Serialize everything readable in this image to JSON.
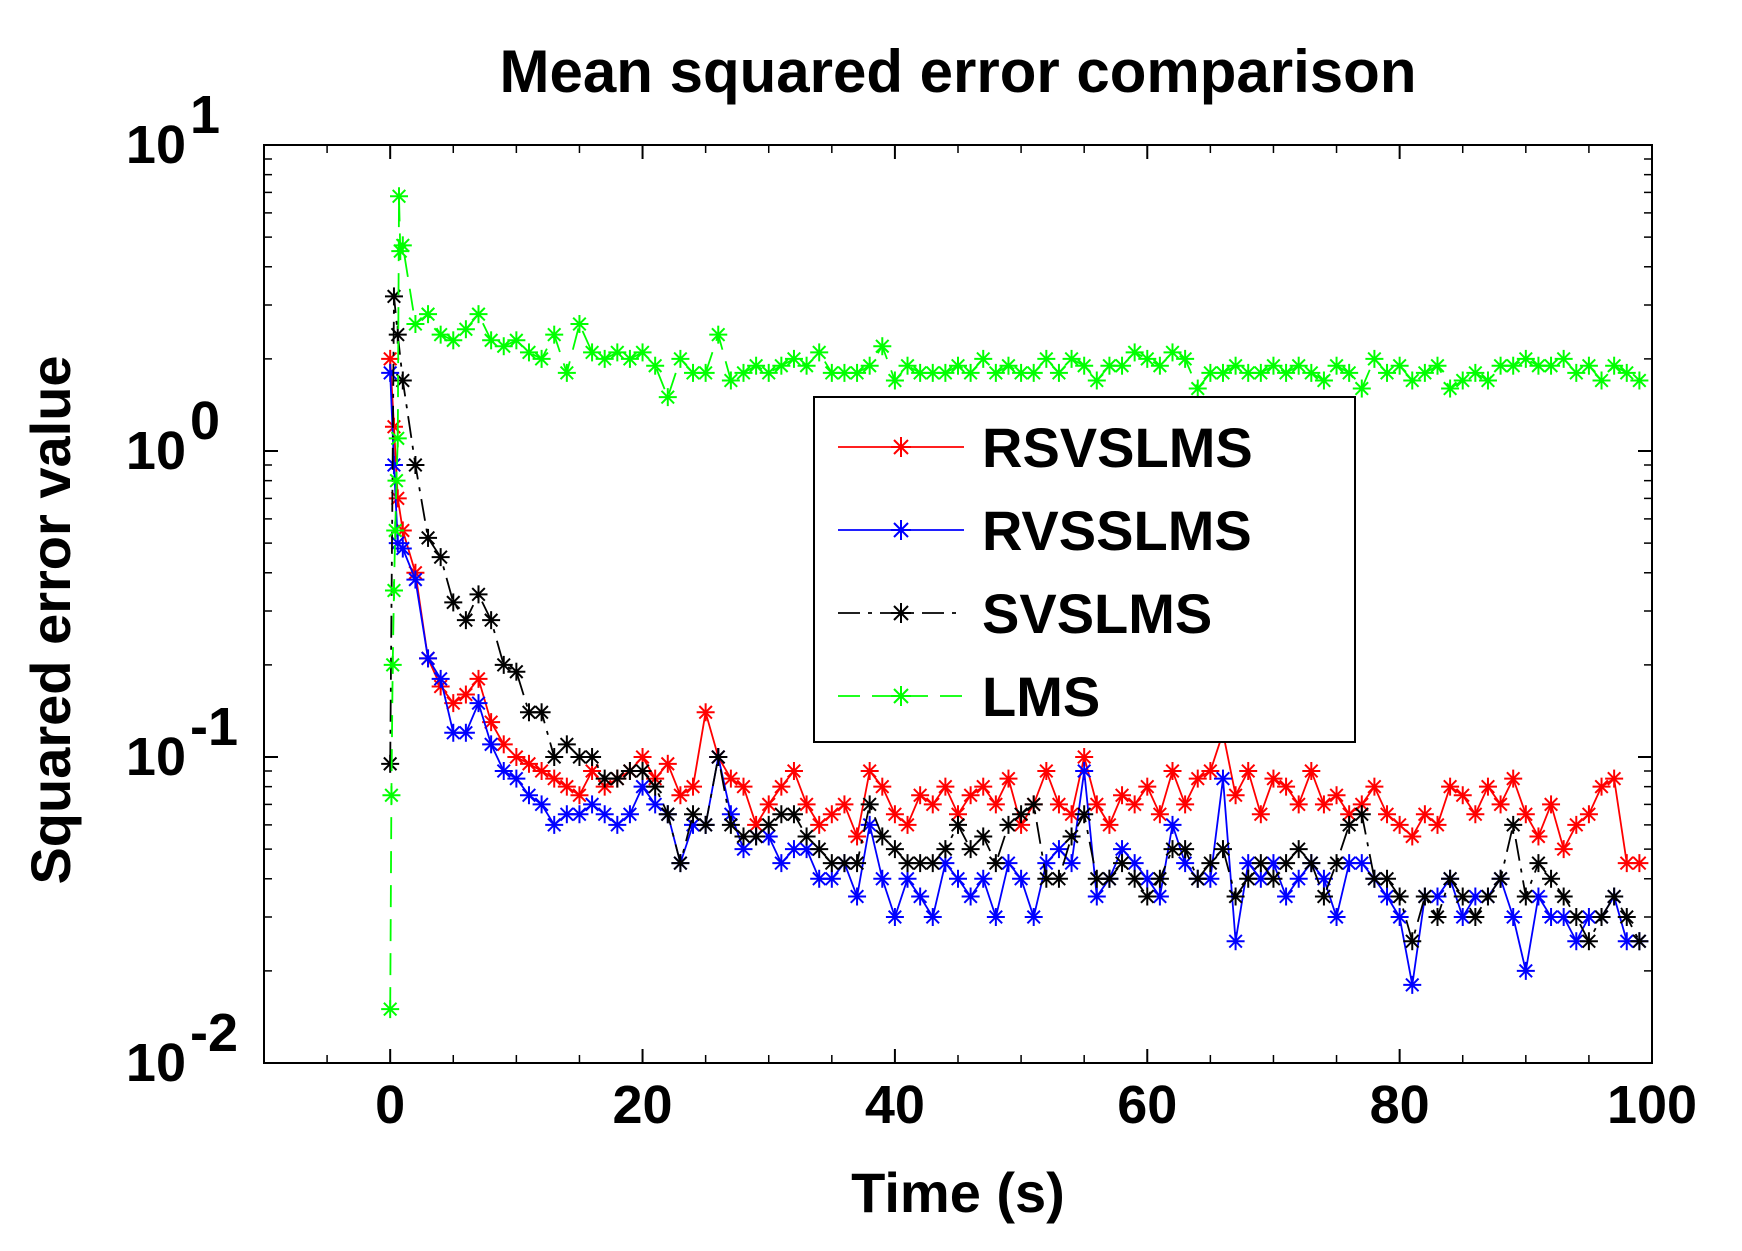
{
  "chart_data": {
    "type": "line",
    "title": "Mean squared error comparison",
    "xlabel": "Time (s)",
    "ylabel": "Squared error value",
    "xlim": [
      -10,
      100
    ],
    "ylim": [
      0.01,
      10
    ],
    "yscale": "log",
    "xticks": [
      0,
      20,
      40,
      60,
      80,
      100
    ],
    "xtick_labels": [
      "0",
      "20",
      "40",
      "60",
      "80",
      "100"
    ],
    "yticks": [
      {
        "value": 10,
        "base": "10",
        "exp": "1"
      },
      {
        "value": 1,
        "base": "10",
        "exp": "0"
      },
      {
        "value": 0.1,
        "base": "10",
        "exp": "-1"
      },
      {
        "value": 0.01,
        "base": "10",
        "exp": "-2"
      }
    ],
    "grid": false,
    "legend_position": "center-right",
    "series": [
      {
        "name": "RSVSLMS",
        "color": "#ff0000",
        "dash": "solid",
        "x": [
          0,
          0.3,
          0.6,
          1,
          2,
          3,
          4,
          5,
          6,
          7,
          8,
          9,
          10,
          11,
          12,
          13,
          14,
          15,
          16,
          17,
          18,
          19,
          20,
          21,
          22,
          23,
          24,
          25,
          26,
          27,
          28,
          29,
          30,
          31,
          32,
          33,
          34,
          35,
          36,
          37,
          38,
          39,
          40,
          41,
          42,
          43,
          44,
          45,
          46,
          47,
          48,
          49,
          50,
          51,
          52,
          53,
          54,
          55,
          56,
          57,
          58,
          59,
          60,
          61,
          62,
          63,
          64,
          65,
          66,
          67,
          68,
          69,
          70,
          71,
          72,
          73,
          74,
          75,
          76,
          77,
          78,
          79,
          80,
          81,
          82,
          83,
          84,
          85,
          86,
          87,
          88,
          89,
          90,
          91,
          92,
          93,
          94,
          95,
          96,
          97,
          98,
          99
        ],
        "y": [
          2.0,
          1.2,
          0.7,
          0.55,
          0.4,
          0.21,
          0.17,
          0.15,
          0.16,
          0.18,
          0.13,
          0.11,
          0.1,
          0.095,
          0.09,
          0.085,
          0.08,
          0.075,
          0.09,
          0.08,
          0.085,
          0.09,
          0.1,
          0.085,
          0.095,
          0.075,
          0.08,
          0.14,
          0.1,
          0.085,
          0.08,
          0.06,
          0.07,
          0.08,
          0.09,
          0.07,
          0.06,
          0.065,
          0.07,
          0.055,
          0.09,
          0.08,
          0.065,
          0.06,
          0.075,
          0.07,
          0.08,
          0.065,
          0.075,
          0.08,
          0.07,
          0.085,
          0.06,
          0.07,
          0.09,
          0.07,
          0.065,
          0.1,
          0.07,
          0.06,
          0.075,
          0.07,
          0.08,
          0.065,
          0.09,
          0.07,
          0.085,
          0.09,
          0.12,
          0.075,
          0.09,
          0.065,
          0.085,
          0.08,
          0.07,
          0.09,
          0.07,
          0.075,
          0.065,
          0.07,
          0.08,
          0.065,
          0.06,
          0.055,
          0.065,
          0.06,
          0.08,
          0.075,
          0.065,
          0.08,
          0.07,
          0.085,
          0.065,
          0.055,
          0.07,
          0.05,
          0.06,
          0.065,
          0.08,
          0.085,
          0.045,
          0.045
        ]
      },
      {
        "name": "RVSSLMS",
        "color": "#0000ff",
        "dash": "solid",
        "x": [
          0,
          0.3,
          0.6,
          1,
          2,
          3,
          4,
          5,
          6,
          7,
          8,
          9,
          10,
          11,
          12,
          13,
          14,
          15,
          16,
          17,
          18,
          19,
          20,
          21,
          22,
          23,
          24,
          25,
          26,
          27,
          28,
          29,
          30,
          31,
          32,
          33,
          34,
          35,
          36,
          37,
          38,
          39,
          40,
          41,
          42,
          43,
          44,
          45,
          46,
          47,
          48,
          49,
          50,
          51,
          52,
          53,
          54,
          55,
          56,
          57,
          58,
          59,
          60,
          61,
          62,
          63,
          64,
          65,
          66,
          67,
          68,
          69,
          70,
          71,
          72,
          73,
          74,
          75,
          76,
          77,
          78,
          79,
          80,
          81,
          82,
          83,
          84,
          85,
          86,
          87,
          88,
          89,
          90,
          91,
          92,
          93,
          94,
          95,
          96,
          97,
          98,
          99
        ],
        "y": [
          1.8,
          0.9,
          0.5,
          0.48,
          0.38,
          0.21,
          0.18,
          0.12,
          0.12,
          0.15,
          0.11,
          0.09,
          0.085,
          0.075,
          0.07,
          0.06,
          0.065,
          0.065,
          0.07,
          0.065,
          0.06,
          0.065,
          0.08,
          0.07,
          0.065,
          0.045,
          0.06,
          0.06,
          0.1,
          0.065,
          0.05,
          0.055,
          0.055,
          0.045,
          0.05,
          0.05,
          0.04,
          0.04,
          0.045,
          0.035,
          0.06,
          0.04,
          0.03,
          0.04,
          0.035,
          0.03,
          0.045,
          0.04,
          0.035,
          0.04,
          0.03,
          0.045,
          0.04,
          0.03,
          0.045,
          0.05,
          0.045,
          0.09,
          0.035,
          0.04,
          0.05,
          0.045,
          0.04,
          0.035,
          0.06,
          0.045,
          0.04,
          0.04,
          0.085,
          0.025,
          0.045,
          0.04,
          0.045,
          0.035,
          0.04,
          0.045,
          0.04,
          0.03,
          0.045,
          0.045,
          0.04,
          0.035,
          0.03,
          0.018,
          0.035,
          0.035,
          0.04,
          0.03,
          0.035,
          0.035,
          0.04,
          0.03,
          0.02,
          0.035,
          0.03,
          0.03,
          0.025,
          0.03,
          0.03,
          0.035,
          0.025,
          0.025
        ]
      },
      {
        "name": "SVSLMS",
        "color": "#000000",
        "dash": "dashdot",
        "x": [
          0,
          0.3,
          0.6,
          1,
          2,
          3,
          4,
          5,
          6,
          7,
          8,
          9,
          10,
          11,
          12,
          13,
          14,
          15,
          16,
          17,
          18,
          19,
          20,
          21,
          22,
          23,
          24,
          25,
          26,
          27,
          28,
          29,
          30,
          31,
          32,
          33,
          34,
          35,
          36,
          37,
          38,
          39,
          40,
          41,
          42,
          43,
          44,
          45,
          46,
          47,
          48,
          49,
          50,
          51,
          52,
          53,
          54,
          55,
          56,
          57,
          58,
          59,
          60,
          61,
          62,
          63,
          64,
          65,
          66,
          67,
          68,
          69,
          70,
          71,
          72,
          73,
          74,
          75,
          76,
          77,
          78,
          79,
          80,
          81,
          82,
          83,
          84,
          85,
          86,
          87,
          88,
          89,
          90,
          91,
          92,
          93,
          94,
          95,
          96,
          97,
          98,
          99
        ],
        "y": [
          0.095,
          3.2,
          2.4,
          1.7,
          0.9,
          0.52,
          0.45,
          0.32,
          0.28,
          0.34,
          0.28,
          0.2,
          0.19,
          0.14,
          0.14,
          0.1,
          0.11,
          0.1,
          0.1,
          0.085,
          0.085,
          0.09,
          0.09,
          0.08,
          0.065,
          0.045,
          0.065,
          0.06,
          0.1,
          0.06,
          0.055,
          0.055,
          0.06,
          0.065,
          0.065,
          0.055,
          0.05,
          0.045,
          0.045,
          0.045,
          0.07,
          0.055,
          0.05,
          0.045,
          0.045,
          0.045,
          0.05,
          0.06,
          0.05,
          0.055,
          0.045,
          0.06,
          0.065,
          0.07,
          0.04,
          0.04,
          0.055,
          0.065,
          0.04,
          0.04,
          0.045,
          0.04,
          0.035,
          0.04,
          0.05,
          0.05,
          0.04,
          0.045,
          0.05,
          0.035,
          0.04,
          0.045,
          0.04,
          0.045,
          0.05,
          0.045,
          0.035,
          0.045,
          0.06,
          0.065,
          0.04,
          0.04,
          0.035,
          0.025,
          0.035,
          0.03,
          0.04,
          0.035,
          0.03,
          0.035,
          0.04,
          0.06,
          0.035,
          0.045,
          0.04,
          0.035,
          0.03,
          0.025,
          0.03,
          0.035,
          0.03,
          0.025
        ]
      },
      {
        "name": "LMS",
        "color": "#00ff00",
        "dash": "dashed",
        "x": [
          0,
          0.1,
          0.2,
          0.3,
          0.4,
          0.5,
          0.6,
          0.7,
          0.8,
          1,
          2,
          3,
          4,
          5,
          6,
          7,
          8,
          9,
          10,
          11,
          12,
          13,
          14,
          15,
          16,
          17,
          18,
          19,
          20,
          21,
          22,
          23,
          24,
          25,
          26,
          27,
          28,
          29,
          30,
          31,
          32,
          33,
          34,
          35,
          36,
          37,
          38,
          39,
          40,
          41,
          42,
          43,
          44,
          45,
          46,
          47,
          48,
          49,
          50,
          51,
          52,
          53,
          54,
          55,
          56,
          57,
          58,
          59,
          60,
          61,
          62,
          63,
          64,
          65,
          66,
          67,
          68,
          69,
          70,
          71,
          72,
          73,
          74,
          75,
          76,
          77,
          78,
          79,
          80,
          81,
          82,
          83,
          84,
          85,
          86,
          87,
          88,
          89,
          90,
          91,
          92,
          93,
          94,
          95,
          96,
          97,
          98,
          99
        ],
        "y": [
          0.015,
          0.075,
          0.2,
          0.35,
          0.55,
          0.8,
          1.1,
          6.8,
          4.5,
          4.7,
          2.6,
          2.8,
          2.4,
          2.3,
          2.5,
          2.8,
          2.3,
          2.2,
          2.3,
          2.1,
          2.0,
          2.4,
          1.8,
          2.6,
          2.1,
          2.0,
          2.1,
          2.0,
          2.1,
          1.9,
          1.5,
          2.0,
          1.8,
          1.8,
          2.4,
          1.7,
          1.8,
          1.9,
          1.8,
          1.9,
          2.0,
          1.9,
          2.1,
          1.8,
          1.8,
          1.8,
          1.9,
          2.2,
          1.7,
          1.9,
          1.8,
          1.8,
          1.8,
          1.9,
          1.8,
          2.0,
          1.8,
          1.9,
          1.8,
          1.8,
          2.0,
          1.8,
          2.0,
          1.9,
          1.7,
          1.9,
          1.9,
          2.1,
          2.0,
          1.9,
          2.1,
          2.0,
          1.6,
          1.8,
          1.8,
          1.9,
          1.8,
          1.8,
          1.9,
          1.8,
          1.9,
          1.8,
          1.7,
          1.9,
          1.8,
          1.6,
          2.0,
          1.8,
          1.9,
          1.7,
          1.8,
          1.9,
          1.6,
          1.7,
          1.8,
          1.7,
          1.9,
          1.9,
          2.0,
          1.9,
          1.9,
          2.0,
          1.8,
          1.9,
          1.7,
          1.9,
          1.8,
          1.7
        ]
      }
    ]
  }
}
